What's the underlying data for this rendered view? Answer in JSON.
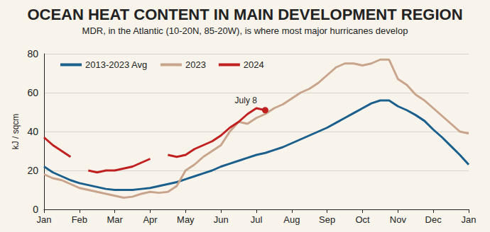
{
  "chart_data": {
    "type": "line",
    "title": "OCEAN HEAT CONTENT IN MAIN DEVELOPMENT REGION",
    "subtitle": "MDR, in the Atlantic (10-20N, 85-20W), is where most major hurricanes develop",
    "y_label": "kJ / sqcm",
    "categories": [
      "Jan",
      null,
      null,
      null,
      "Feb",
      null,
      null,
      null,
      "Mar",
      null,
      null,
      null,
      "Apr",
      null,
      null,
      null,
      "May",
      null,
      null,
      null,
      "Jun",
      null,
      null,
      null,
      "Jul",
      null,
      null,
      null,
      "Aug",
      null,
      null,
      null,
      "Sep",
      null,
      null,
      null,
      "Oct",
      null,
      null,
      null,
      "Nov",
      null,
      null,
      null,
      "Dec",
      null,
      null,
      null,
      "Jan"
    ],
    "series": [
      {
        "name": "2013-2023 Avg",
        "color": "#1b5f8c",
        "values": [
          22,
          19,
          17,
          15,
          13.5,
          12.5,
          11.5,
          10.5,
          10,
          10,
          10,
          10.5,
          11,
          12,
          13,
          14,
          15.5,
          17,
          18.5,
          20,
          22,
          23.5,
          25,
          26.5,
          28,
          29,
          30.5,
          32,
          34,
          36,
          38,
          40,
          42,
          44.5,
          47,
          49.5,
          52,
          54.5,
          56,
          56,
          53,
          51,
          48.5,
          45.5,
          41,
          37,
          32.5,
          28,
          23
        ]
      },
      {
        "name": "2023",
        "color": "#c9a48c",
        "values": [
          18,
          16,
          15,
          13,
          11,
          10,
          9,
          8,
          7,
          6,
          6.5,
          8,
          9,
          8.5,
          9,
          12,
          20,
          23,
          27,
          30,
          33,
          40,
          45,
          44,
          47,
          49,
          52,
          54,
          57,
          60,
          62,
          65,
          69,
          73,
          75,
          75,
          74,
          75,
          77,
          77,
          67,
          64,
          59,
          56,
          52,
          48,
          44,
          40,
          39
        ]
      },
      {
        "name": "2024",
        "color": "#c0201f",
        "values": [
          37,
          33,
          30,
          27,
          null,
          20,
          19,
          20,
          20,
          21,
          22,
          24,
          26,
          null,
          28,
          27,
          28,
          31,
          33,
          35,
          38,
          42,
          45,
          49,
          52,
          51,
          null,
          null,
          null,
          null,
          null,
          null,
          null,
          null,
          null,
          null,
          null,
          null,
          null,
          null,
          null,
          null,
          null,
          null,
          null,
          null,
          null,
          null,
          null
        ]
      }
    ],
    "ylim": [
      0,
      80
    ],
    "yticks": [
      0,
      20,
      40,
      60,
      80
    ],
    "grid": true,
    "legend": "upper left",
    "annotations": [
      {
        "text": "July 8",
        "series": "2024",
        "index": 25
      }
    ]
  }
}
